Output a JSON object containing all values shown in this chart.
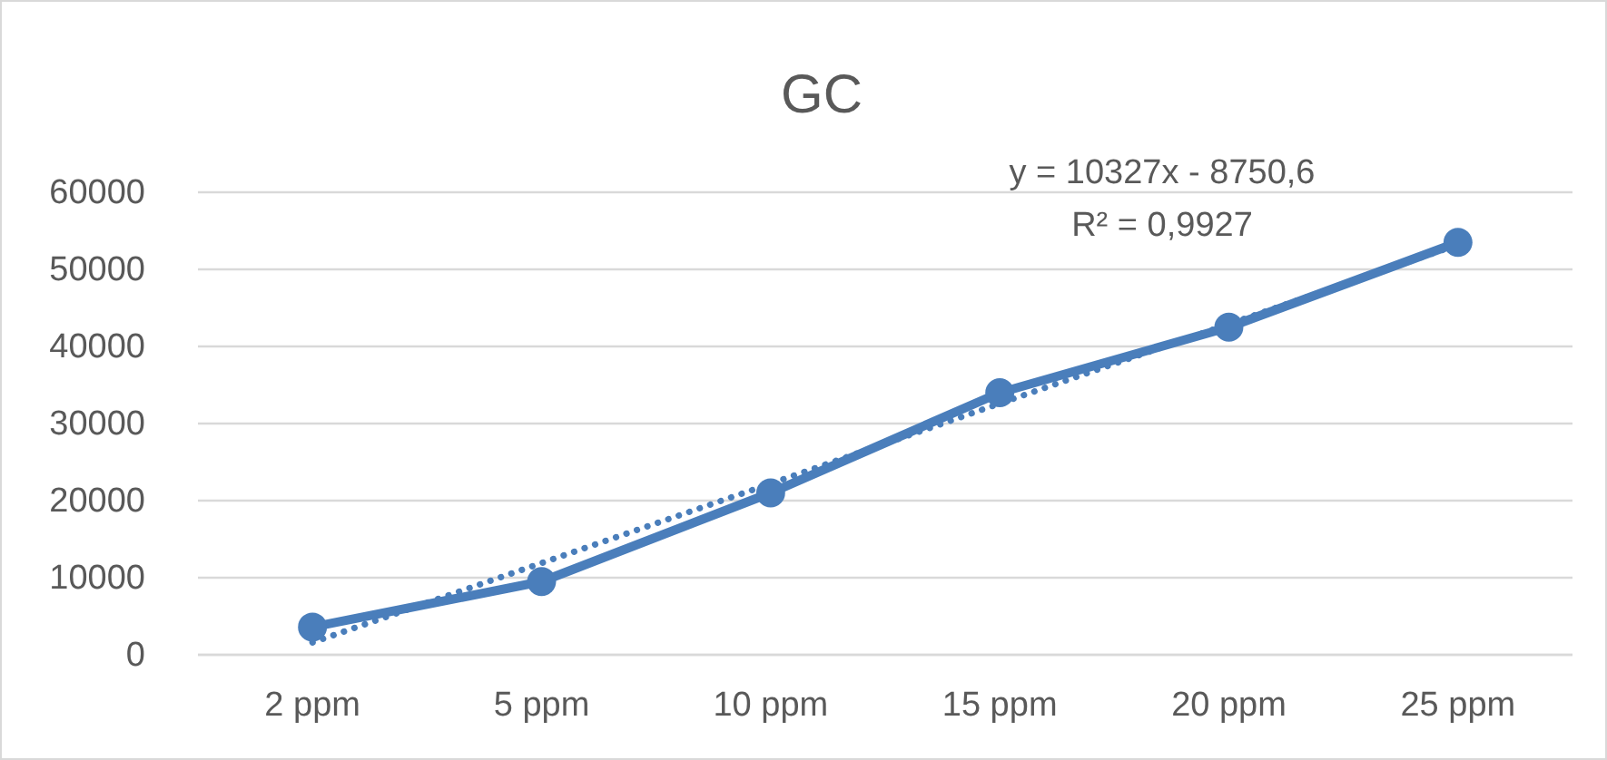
{
  "chart_data": {
    "type": "line",
    "title": "GC",
    "categories": [
      "2 ppm",
      "5 ppm",
      "10 ppm",
      "15 ppm",
      "20 ppm",
      "25 ppm"
    ],
    "series": [
      {
        "color": "#4a7ebb",
        "values": [
          3600,
          9500,
          21000,
          34000,
          42500,
          53500
        ],
        "marker": "circle",
        "line_style": "solid"
      },
      {
        "type": "line",
        "color": "#4a7ebb",
        "values": [
          1600,
          11900,
          22200,
          32600,
          42900,
          53200
        ],
        "marker": "none",
        "line_style": "dotted"
      }
    ],
    "ylim": [
      0,
      60000
    ],
    "yticks": [
      0,
      10000,
      20000,
      30000,
      40000,
      50000,
      60000
    ],
    "grid": "y",
    "annotations": [
      "y = 10327x - 8750,6\nR² = 0,9927"
    ]
  }
}
